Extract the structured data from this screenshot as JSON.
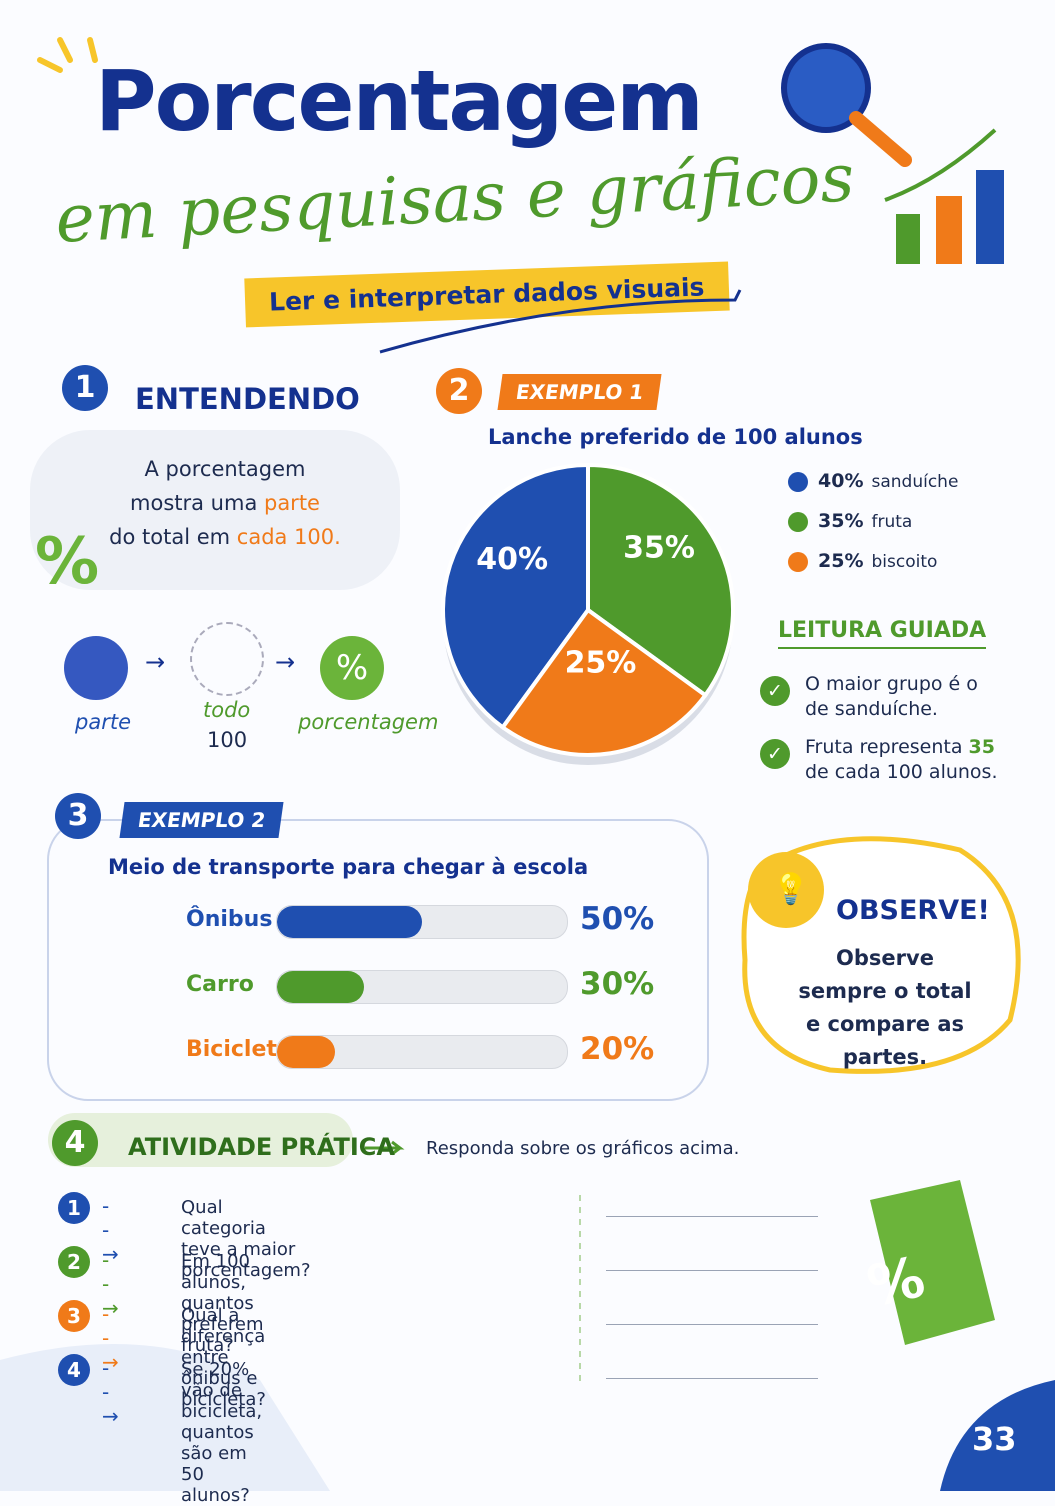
{
  "header": {
    "title": "Porcentagem",
    "subtitle": "em pesquisas e gráficos",
    "tagline": "Ler e interpretar dados visuais"
  },
  "section1": {
    "number": "1",
    "title": "ENTENDENDO",
    "text": [
      "A porcentagem",
      "mostra uma ",
      "parte",
      "do total em ",
      "cada 100."
    ],
    "symbol": "%",
    "diagram": {
      "part": "parte",
      "whole": "todo",
      "whole_value": "100",
      "percent_symbol": "%",
      "percent": "porcentagem"
    }
  },
  "section2": {
    "number": "2",
    "label": "EXEMPLO 1",
    "guide": {
      "title": "LEITURA GUIADA",
      "items": [
        [
          "O maior grupo é o",
          "de sanduíche."
        ],
        [
          "Fruta representa ",
          "35",
          "de cada 100 alunos."
        ]
      ]
    }
  },
  "section3": {
    "number": "3",
    "label": "EXEMPLO 2"
  },
  "observe": {
    "title": "OBSERVE!",
    "text": "Observe sempre o total e compare as partes."
  },
  "section4": {
    "number": "4",
    "title": "ATIVIDADE PRÁTICA",
    "instruction": "Responda sobre os gráficos acima.",
    "questions": [
      {
        "number": "1",
        "text": "Qual categoria teve a maior porcentagem?"
      },
      {
        "number": "2",
        "text": "Em 100 alunos, quantos preferem fruta?"
      },
      {
        "number": "3",
        "text": "Qual a diferença entre ônibus e bicicleta?"
      },
      {
        "number": "4",
        "text": "Se 20% vão de bicicleta, quantos são em 50 alunos?"
      }
    ]
  },
  "tag_symbol": "%",
  "page_number": "33",
  "chart_data": [
    {
      "type": "pie",
      "title": "Lanche preferido de 100 alunos",
      "categories": [
        "sanduíche",
        "fruta",
        "biscoito"
      ],
      "values": [
        40,
        35,
        25
      ],
      "value_labels": [
        "40%",
        "35%",
        "25%"
      ],
      "colors": [
        "#1f4fb0",
        "#4f9a2c",
        "#f07a19"
      ]
    },
    {
      "type": "bar",
      "orientation": "horizontal",
      "title": "Meio de transporte para chegar à escola",
      "categories": [
        "Ônibus",
        "Carro",
        "Bicicleta"
      ],
      "values": [
        50,
        30,
        20
      ],
      "value_labels": [
        "50%",
        "30%",
        "20%"
      ],
      "colors": [
        "#1f4fb0",
        "#4f9a2c",
        "#f07a19"
      ],
      "xlim": [
        0,
        100
      ]
    }
  ]
}
